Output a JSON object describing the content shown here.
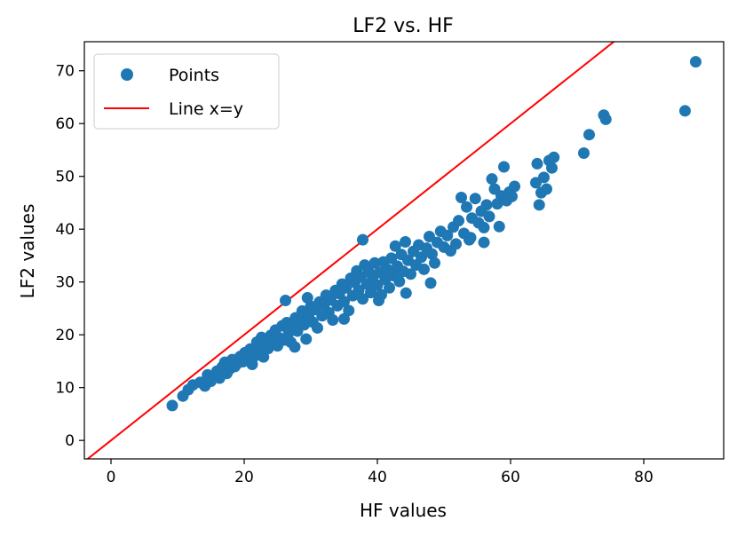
{
  "chart_data": {
    "type": "scatter",
    "title": "LF2 vs. HF",
    "xlabel": "HF values",
    "ylabel": "LF2 values",
    "xlim": [
      -4,
      92
    ],
    "ylim": [
      -3.5,
      75.5
    ],
    "xticks": [
      0,
      20,
      40,
      60,
      80
    ],
    "yticks": [
      0,
      10,
      20,
      30,
      40,
      50,
      60,
      70
    ],
    "grid": false,
    "legend_position": "top-left",
    "series": [
      {
        "name": "Points",
        "kind": "scatter",
        "color": "#1f77b4",
        "points": [
          [
            9.2,
            6.6
          ],
          [
            10.8,
            8.4
          ],
          [
            11.6,
            9.6
          ],
          [
            12.3,
            10.5
          ],
          [
            13.4,
            11.0
          ],
          [
            14.1,
            10.3
          ],
          [
            14.5,
            12.4
          ],
          [
            15.0,
            11.2
          ],
          [
            15.6,
            12.0
          ],
          [
            15.9,
            13.1
          ],
          [
            16.3,
            11.8
          ],
          [
            16.7,
            13.9
          ],
          [
            17.1,
            14.8
          ],
          [
            17.4,
            12.7
          ],
          [
            17.9,
            13.6
          ],
          [
            18.2,
            15.3
          ],
          [
            18.6,
            14.0
          ],
          [
            19.0,
            14.6
          ],
          [
            19.4,
            15.9
          ],
          [
            19.8,
            14.9
          ],
          [
            20.1,
            16.6
          ],
          [
            20.5,
            15.1
          ],
          [
            20.9,
            17.3
          ],
          [
            21.2,
            14.4
          ],
          [
            21.6,
            16.0
          ],
          [
            21.9,
            18.6
          ],
          [
            22.3,
            17.0
          ],
          [
            22.6,
            19.5
          ],
          [
            22.9,
            15.8
          ],
          [
            23.3,
            18.2
          ],
          [
            23.6,
            17.4
          ],
          [
            24.0,
            19.9
          ],
          [
            24.3,
            18.8
          ],
          [
            24.7,
            20.9
          ],
          [
            25.0,
            17.9
          ],
          [
            25.3,
            19.4
          ],
          [
            25.7,
            21.7
          ],
          [
            26.0,
            19.0
          ],
          [
            26.4,
            22.3
          ],
          [
            26.7,
            20.4
          ],
          [
            27.0,
            18.6
          ],
          [
            27.3,
            21.5
          ],
          [
            27.7,
            23.2
          ],
          [
            28.0,
            20.7
          ],
          [
            28.4,
            22.6
          ],
          [
            28.7,
            24.5
          ],
          [
            29.0,
            21.9
          ],
          [
            29.3,
            19.2
          ],
          [
            29.7,
            23.7
          ],
          [
            30.0,
            25.4
          ],
          [
            30.3,
            22.4
          ],
          [
            30.7,
            24.8
          ],
          [
            31.0,
            21.3
          ],
          [
            31.3,
            26.2
          ],
          [
            31.7,
            23.6
          ],
          [
            32.0,
            25.7
          ],
          [
            32.3,
            27.5
          ],
          [
            32.7,
            24.2
          ],
          [
            33.0,
            26.6
          ],
          [
            33.3,
            22.8
          ],
          [
            33.7,
            28.4
          ],
          [
            34.0,
            25.5
          ],
          [
            34.3,
            27.8
          ],
          [
            34.7,
            29.6
          ],
          [
            35.0,
            26.3
          ],
          [
            35.3,
            28.9
          ],
          [
            35.7,
            24.6
          ],
          [
            36.0,
            30.7
          ],
          [
            36.3,
            27.4
          ],
          [
            36.6,
            29.9
          ],
          [
            36.9,
            32.1
          ],
          [
            37.2,
            28.4
          ],
          [
            37.5,
            31.0
          ],
          [
            37.8,
            26.8
          ],
          [
            38.1,
            33.2
          ],
          [
            38.4,
            29.6
          ],
          [
            38.7,
            31.9
          ],
          [
            39.0,
            28.0
          ],
          [
            39.3,
            30.8
          ],
          [
            39.6,
            33.6
          ],
          [
            40.0,
            29.4
          ],
          [
            40.3,
            31.8
          ],
          [
            40.6,
            27.6
          ],
          [
            40.9,
            33.8
          ],
          [
            41.2,
            30.5
          ],
          [
            41.5,
            32.4
          ],
          [
            41.8,
            28.9
          ],
          [
            42.1,
            34.5
          ],
          [
            42.4,
            31.2
          ],
          [
            42.7,
            36.8
          ],
          [
            43.0,
            33.0
          ],
          [
            43.3,
            30.1
          ],
          [
            43.6,
            35.2
          ],
          [
            43.9,
            32.0
          ],
          [
            44.2,
            37.6
          ],
          [
            44.6,
            34.1
          ],
          [
            45.0,
            31.5
          ],
          [
            45.4,
            35.8
          ],
          [
            45.8,
            33.2
          ],
          [
            46.2,
            37.0
          ],
          [
            46.6,
            34.7
          ],
          [
            47.0,
            32.4
          ],
          [
            47.4,
            36.4
          ],
          [
            47.8,
            38.6
          ],
          [
            48.2,
            35.3
          ],
          [
            48.6,
            33.6
          ],
          [
            49.0,
            37.5
          ],
          [
            49.5,
            39.6
          ],
          [
            50.0,
            36.6
          ],
          [
            50.5,
            38.8
          ],
          [
            51.0,
            35.9
          ],
          [
            51.4,
            40.4
          ],
          [
            51.8,
            37.2
          ],
          [
            52.2,
            41.6
          ],
          [
            52.6,
            46.0
          ],
          [
            53.0,
            39.2
          ],
          [
            53.4,
            44.2
          ],
          [
            53.8,
            38.0
          ],
          [
            54.2,
            42.1
          ],
          [
            54.7,
            45.8
          ],
          [
            55.2,
            41.2
          ],
          [
            55.6,
            43.4
          ],
          [
            56.0,
            40.3
          ],
          [
            56.4,
            44.6
          ],
          [
            56.8,
            42.4
          ],
          [
            57.2,
            49.5
          ],
          [
            57.6,
            47.6
          ],
          [
            58.0,
            44.8
          ],
          [
            58.3,
            40.5
          ],
          [
            58.6,
            46.3
          ],
          [
            59.0,
            51.8
          ],
          [
            59.4,
            45.4
          ],
          [
            59.8,
            47.0
          ],
          [
            60.2,
            46.2
          ],
          [
            60.6,
            48.1
          ],
          [
            63.8,
            48.8
          ],
          [
            64.0,
            52.4
          ],
          [
            64.3,
            44.6
          ],
          [
            64.6,
            46.9
          ],
          [
            65.0,
            49.8
          ],
          [
            65.4,
            47.6
          ],
          [
            65.8,
            53.0
          ],
          [
            66.2,
            51.6
          ],
          [
            66.5,
            53.6
          ],
          [
            71.0,
            54.4
          ],
          [
            71.8,
            57.9
          ],
          [
            74.0,
            61.6
          ],
          [
            74.3,
            60.8
          ],
          [
            86.2,
            62.4
          ],
          [
            87.8,
            71.7
          ],
          [
            56.0,
            37.5
          ],
          [
            54.0,
            38.4
          ],
          [
            40.2,
            26.5
          ],
          [
            35.0,
            23.0
          ],
          [
            48.0,
            29.8
          ],
          [
            27.6,
            17.7
          ],
          [
            37.8,
            38.0
          ],
          [
            29.5,
            27.0
          ],
          [
            44.3,
            27.9
          ],
          [
            26.2,
            26.5
          ]
        ]
      },
      {
        "name": "Line x=y",
        "kind": "line",
        "color": "#ff0000",
        "points": [
          [
            -4,
            -4
          ],
          [
            92,
            92
          ]
        ]
      }
    ]
  }
}
